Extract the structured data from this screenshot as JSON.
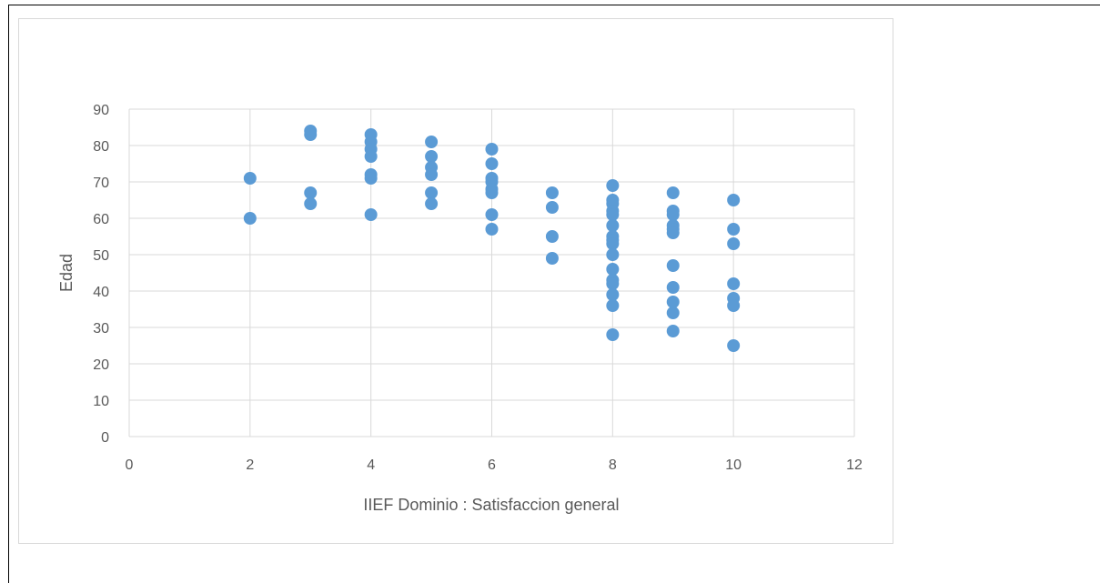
{
  "chart_data": {
    "type": "scatter",
    "title": "",
    "xlabel": "IIEF Dominio :   Satisfaccion general",
    "ylabel": "Edad",
    "xlim": [
      0,
      12
    ],
    "ylim": [
      0,
      90
    ],
    "x_ticks": [
      0,
      2,
      4,
      6,
      8,
      10,
      12
    ],
    "y_ticks": [
      0,
      10,
      20,
      30,
      40,
      50,
      60,
      70,
      80,
      90
    ],
    "grid": true,
    "legend": "none",
    "marker_color": "#5b9bd5",
    "gridline_color": "#d9d9d9",
    "points": [
      {
        "x": 2,
        "y": 71
      },
      {
        "x": 2,
        "y": 60
      },
      {
        "x": 3,
        "y": 84
      },
      {
        "x": 3,
        "y": 83
      },
      {
        "x": 3,
        "y": 67
      },
      {
        "x": 3,
        "y": 64
      },
      {
        "x": 4,
        "y": 83
      },
      {
        "x": 4,
        "y": 81
      },
      {
        "x": 4,
        "y": 79
      },
      {
        "x": 4,
        "y": 77
      },
      {
        "x": 4,
        "y": 72
      },
      {
        "x": 4,
        "y": 71
      },
      {
        "x": 4,
        "y": 61
      },
      {
        "x": 5,
        "y": 81
      },
      {
        "x": 5,
        "y": 77
      },
      {
        "x": 5,
        "y": 74
      },
      {
        "x": 5,
        "y": 72
      },
      {
        "x": 5,
        "y": 67
      },
      {
        "x": 5,
        "y": 64
      },
      {
        "x": 6,
        "y": 79
      },
      {
        "x": 6,
        "y": 75
      },
      {
        "x": 6,
        "y": 71
      },
      {
        "x": 6,
        "y": 70
      },
      {
        "x": 6,
        "y": 68
      },
      {
        "x": 6,
        "y": 67
      },
      {
        "x": 6,
        "y": 61
      },
      {
        "x": 6,
        "y": 57
      },
      {
        "x": 7,
        "y": 67
      },
      {
        "x": 7,
        "y": 63
      },
      {
        "x": 7,
        "y": 55
      },
      {
        "x": 7,
        "y": 49
      },
      {
        "x": 8,
        "y": 69
      },
      {
        "x": 8,
        "y": 65
      },
      {
        "x": 8,
        "y": 64
      },
      {
        "x": 8,
        "y": 62
      },
      {
        "x": 8,
        "y": 61
      },
      {
        "x": 8,
        "y": 58
      },
      {
        "x": 8,
        "y": 55
      },
      {
        "x": 8,
        "y": 54
      },
      {
        "x": 8,
        "y": 53
      },
      {
        "x": 8,
        "y": 50
      },
      {
        "x": 8,
        "y": 46
      },
      {
        "x": 8,
        "y": 43
      },
      {
        "x": 8,
        "y": 42
      },
      {
        "x": 8,
        "y": 39
      },
      {
        "x": 8,
        "y": 36
      },
      {
        "x": 8,
        "y": 28
      },
      {
        "x": 9,
        "y": 67
      },
      {
        "x": 9,
        "y": 62
      },
      {
        "x": 9,
        "y": 61
      },
      {
        "x": 9,
        "y": 58
      },
      {
        "x": 9,
        "y": 57
      },
      {
        "x": 9,
        "y": 56
      },
      {
        "x": 9,
        "y": 47
      },
      {
        "x": 9,
        "y": 41
      },
      {
        "x": 9,
        "y": 37
      },
      {
        "x": 9,
        "y": 34
      },
      {
        "x": 9,
        "y": 29
      },
      {
        "x": 10,
        "y": 65
      },
      {
        "x": 10,
        "y": 57
      },
      {
        "x": 10,
        "y": 53
      },
      {
        "x": 10,
        "y": 42
      },
      {
        "x": 10,
        "y": 38
      },
      {
        "x": 10,
        "y": 36
      },
      {
        "x": 10,
        "y": 25
      }
    ]
  }
}
